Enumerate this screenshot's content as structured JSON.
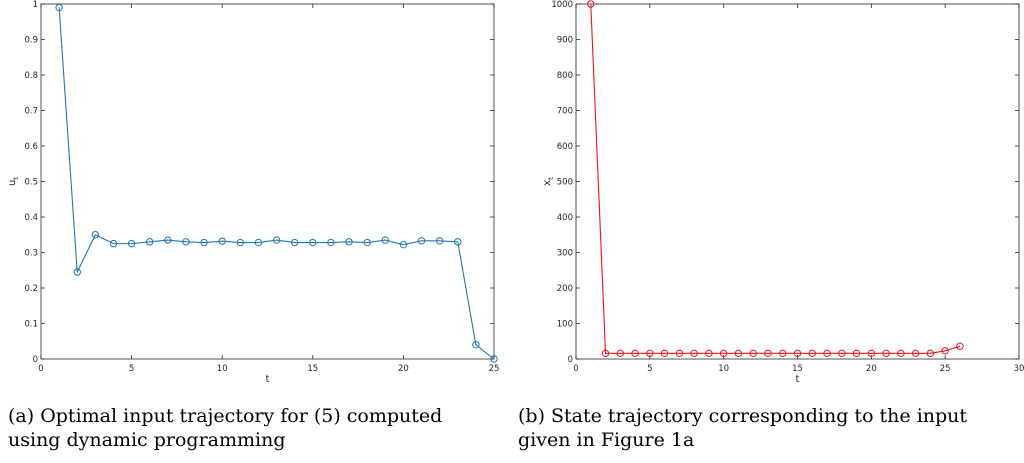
{
  "chart_data": [
    {
      "type": "line",
      "title": "",
      "xlabel": "t",
      "ylabel": "u_t",
      "xlim": [
        0,
        25
      ],
      "ylim": [
        0,
        1
      ],
      "xticks": [
        0,
        5,
        10,
        15,
        20,
        25
      ],
      "yticks": [
        0,
        0.1,
        0.2,
        0.3,
        0.4,
        0.5,
        0.6,
        0.7,
        0.8,
        0.9,
        1
      ],
      "grid": false,
      "color": "#1f77b4",
      "marker": "circle",
      "series": [
        {
          "x": [
            1,
            2,
            3,
            4,
            5,
            6,
            7,
            8,
            9,
            10,
            11,
            12,
            13,
            14,
            15,
            16,
            17,
            18,
            19,
            20,
            21,
            22,
            23,
            24,
            25
          ],
          "values": [
            0.99,
            0.245,
            0.35,
            0.325,
            0.325,
            0.33,
            0.335,
            0.33,
            0.328,
            0.332,
            0.328,
            0.328,
            0.335,
            0.328,
            0.328,
            0.328,
            0.33,
            0.328,
            0.335,
            0.322,
            0.333,
            0.333,
            0.33,
            0.04,
            0.0
          ]
        }
      ]
    },
    {
      "type": "line",
      "title": "",
      "xlabel": "t",
      "ylabel": "x_t",
      "xlim": [
        0,
        30
      ],
      "ylim": [
        0,
        1000
      ],
      "xticks": [
        0,
        5,
        10,
        15,
        20,
        25,
        30
      ],
      "yticks": [
        0,
        100,
        200,
        300,
        400,
        500,
        600,
        700,
        800,
        900,
        1000
      ],
      "grid": false,
      "color": "#e8141a",
      "marker": "circle",
      "series": [
        {
          "x": [
            1,
            2,
            3,
            4,
            5,
            6,
            7,
            8,
            9,
            10,
            11,
            12,
            13,
            14,
            15,
            16,
            17,
            18,
            19,
            20,
            21,
            22,
            23,
            24,
            25,
            26
          ],
          "values": [
            1000,
            16,
            16,
            16,
            16,
            16,
            16,
            16,
            16,
            16,
            16,
            16,
            16,
            16,
            16,
            16,
            16,
            16,
            16,
            16,
            16,
            16,
            16,
            16,
            23,
            36
          ]
        }
      ]
    }
  ],
  "captions": {
    "a_line1": "(a) Optimal input trajectory for (5) computed",
    "a_line2": "using dynamic programming",
    "b_line1": "(b) State trajectory corresponding to the input",
    "b_line2": "given in Figure 1a"
  }
}
